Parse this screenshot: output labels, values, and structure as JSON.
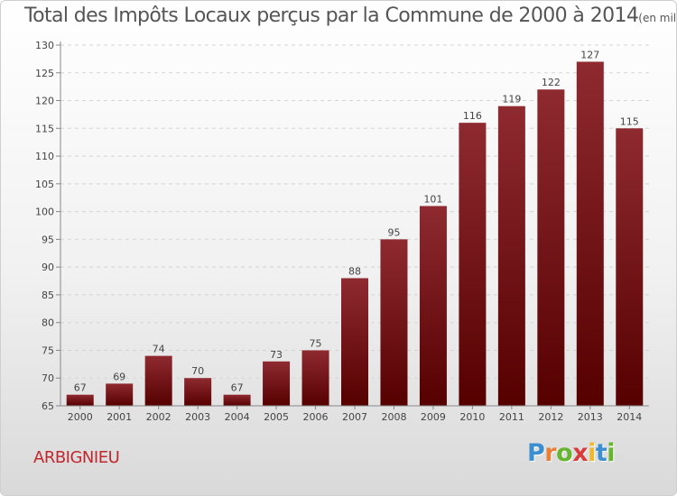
{
  "chart_data": {
    "type": "bar",
    "title": "Total des Impôts Locaux perçus par la Commune de 2000 à 2014",
    "subtitle": "(en milliers d'€)",
    "categories": [
      "2000",
      "2001",
      "2002",
      "2003",
      "2004",
      "2005",
      "2006",
      "2007",
      "2008",
      "2009",
      "2010",
      "2011",
      "2012",
      "2013",
      "2014"
    ],
    "values": [
      67,
      69,
      74,
      70,
      67,
      73,
      75,
      88,
      95,
      101,
      116,
      119,
      122,
      127,
      115
    ],
    "yticks": [
      65,
      70,
      75,
      80,
      85,
      90,
      95,
      100,
      105,
      110,
      115,
      120,
      125,
      130
    ],
    "ylim": [
      65,
      130
    ],
    "xlabel": "",
    "ylabel": "",
    "grid": "dashed-horizontal",
    "legend": "none",
    "bar_color": "#7a1a20"
  },
  "commune": "ARBIGNIEU",
  "brand": {
    "letters": [
      "P",
      "r",
      "o",
      "x",
      "i",
      "t",
      "i"
    ],
    "colors": [
      "#3b8fd1",
      "#e9803a",
      "#67b42f",
      "#d83c3c",
      "#f0b82a",
      "#3b8fd1",
      "#67b42f"
    ]
  }
}
